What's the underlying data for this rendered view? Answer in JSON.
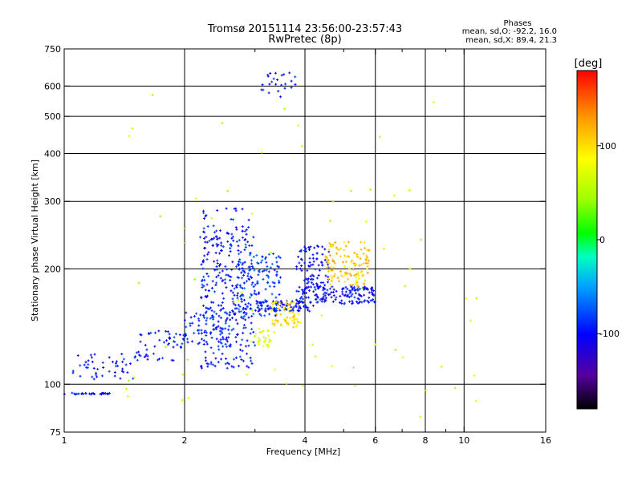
{
  "header": {
    "title_line1": "Tromsø 20151114 23:56:00-23:57:43",
    "title_line2": "RwPretec (8p)",
    "stats_title": "Phases",
    "stats_o": "mean, sd,O: -92.2, 16.0",
    "stats_x": "mean, sd,X:  89.4, 21.3"
  },
  "colorbar": {
    "label": "[deg]",
    "min": -180,
    "max": 180,
    "ticks": [
      {
        "value": 100,
        "label": "100"
      },
      {
        "value": 0,
        "label": "0"
      },
      {
        "value": -100,
        "label": "-100"
      }
    ]
  },
  "chart_data": {
    "type": "scatter",
    "xlabel": "Frequency [MHz]",
    "ylabel": "Stationary phase Virtual Height [km]",
    "xscale": "log",
    "yscale": "log",
    "xlim": [
      1,
      16
    ],
    "ylim": [
      75,
      750
    ],
    "xticks": [
      {
        "value": 1,
        "label": "1"
      },
      {
        "value": 2,
        "label": "2"
      },
      {
        "value": 4,
        "label": "4"
      },
      {
        "value": 6,
        "label": "6"
      },
      {
        "value": 8,
        "label": "8"
      },
      {
        "value": 10,
        "label": "10"
      },
      {
        "value": 16,
        "label": "16"
      }
    ],
    "xgrid": [
      2,
      4,
      6,
      8,
      10
    ],
    "xminor": [
      3,
      5,
      7,
      9
    ],
    "yticks": [
      {
        "value": 75,
        "label": "75"
      },
      {
        "value": 100,
        "label": "100"
      },
      {
        "value": 200,
        "label": "200"
      },
      {
        "value": 300,
        "label": "300"
      },
      {
        "value": 400,
        "label": "400"
      },
      {
        "value": 500,
        "label": "500"
      },
      {
        "value": 600,
        "label": "600"
      },
      {
        "value": 750,
        "label": "750"
      }
    ],
    "ygrid": [
      100,
      200,
      300,
      400,
      500,
      600
    ],
    "color_variable": "phase (deg)",
    "traces": [
      {
        "x": [
          1.0,
          1.3
        ],
        "y": [
          94,
          95
        ],
        "phase": -100,
        "n": 30
      },
      {
        "x": [
          1.05,
          1.5
        ],
        "y": [
          103,
          120
        ],
        "phase": -100,
        "n": 45
      },
      {
        "x": [
          1.5,
          2.0
        ],
        "y": [
          115,
          140
        ],
        "phase": -95,
        "n": 55
      },
      {
        "x": [
          2.0,
          2.6
        ],
        "y": [
          125,
          155
        ],
        "phase": -90,
        "n": 70
      },
      {
        "x": [
          2.2,
          3.0
        ],
        "y": [
          110,
          250
        ],
        "phase": -95,
        "n": 300
      },
      {
        "x": [
          2.15,
          2.9
        ],
        "y": [
          235,
          290
        ],
        "phase": -95,
        "n": 40
      },
      {
        "x": [
          2.7,
          3.5
        ],
        "y": [
          150,
          220
        ],
        "phase": -80,
        "n": 120
      },
      {
        "x": [
          3.0,
          4.2
        ],
        "y": [
          155,
          165
        ],
        "phase": -100,
        "n": 90
      },
      {
        "x": [
          3.8,
          6.0
        ],
        "y": [
          162,
          180
        ],
        "phase": -100,
        "n": 160
      },
      {
        "x": [
          3.8,
          4.6
        ],
        "y": [
          180,
          230
        ],
        "phase": -100,
        "n": 80
      },
      {
        "x": [
          3.3,
          3.9
        ],
        "y": [
          140,
          165
        ],
        "phase": 100,
        "n": 60
      },
      {
        "x": [
          3.0,
          3.4
        ],
        "y": [
          125,
          140
        ],
        "phase": 70,
        "n": 25
      },
      {
        "x": [
          4.5,
          5.8
        ],
        "y": [
          180,
          235
        ],
        "phase": 110,
        "n": 120
      },
      {
        "x": [
          3.1,
          3.8
        ],
        "y": [
          560,
          650
        ],
        "phase": -100,
        "n": 25
      },
      {
        "x": [
          1.3,
          12
        ],
        "y": [
          80,
          600
        ],
        "phase": 60,
        "n": 70
      }
    ]
  }
}
